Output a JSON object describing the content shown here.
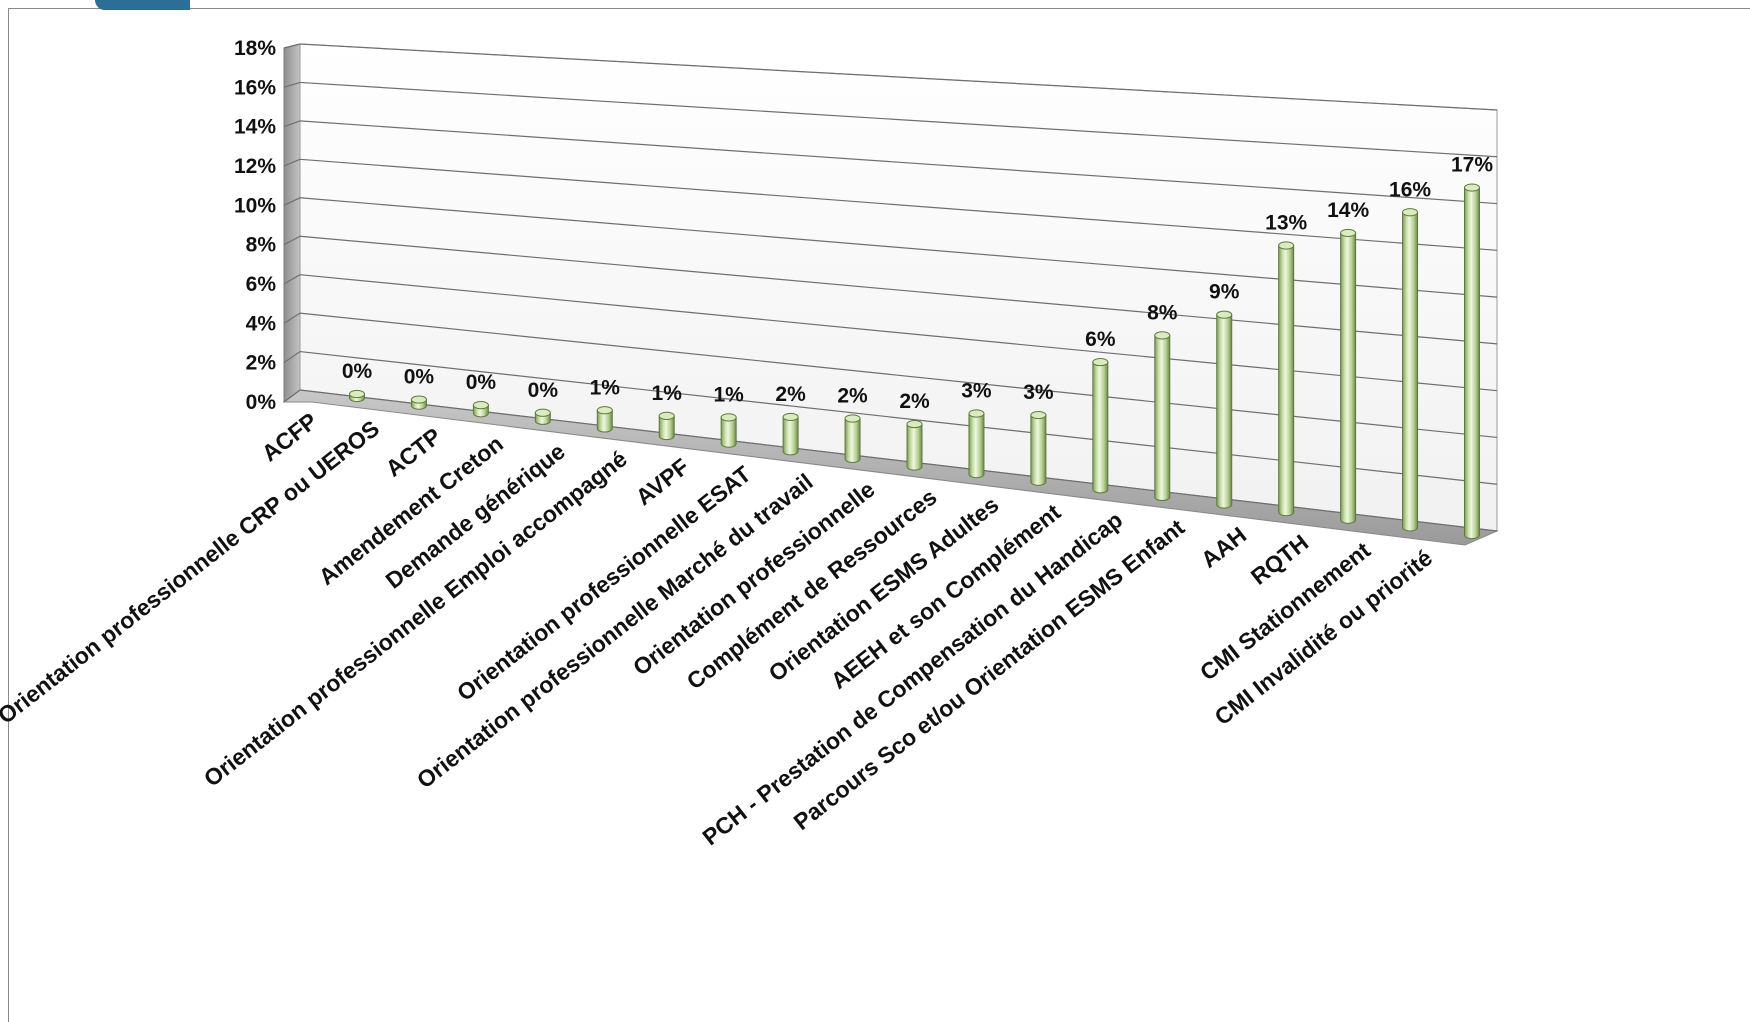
{
  "chart_data": {
    "type": "bar",
    "style": "3d-cylinder",
    "color": "#c9e2a6",
    "categories": [
      "ACFP",
      "Orientation professionnelle CRP ou UEROS",
      "ACTP",
      "Amendement Creton",
      "Demande générique",
      "Orientation professionnelle Emploi accompagné",
      "AVPF",
      "Orientation professionnelle ESAT",
      "Orientation professionnelle Marché du travail",
      "Orientation professionnelle",
      "Complément de Ressources",
      "Orientation ESMS Adultes",
      "AEEH et son Complément",
      "PCH - Prestation de Compensation du Handicap",
      "Parcours Sco et/ou Orientation ESMS Enfant",
      "AAH",
      "RQTH",
      "CMI Stationnement",
      "CMI Invalidité ou priorité"
    ],
    "values": [
      0.1,
      0.3,
      0.4,
      0.4,
      0.9,
      1.0,
      1.3,
      1.7,
      2.0,
      2.1,
      3.0,
      3.3,
      6.3,
      8.0,
      9.4,
      13.2,
      14.2,
      15.6,
      17.2
    ],
    "data_labels": [
      "0%",
      "0%",
      "0%",
      "0%",
      "1%",
      "1%",
      "1%",
      "2%",
      "2%",
      "2%",
      "3%",
      "3%",
      "6%",
      "8%",
      "9%",
      "13%",
      "14%",
      "16%",
      "17%"
    ],
    "y_ticks": [
      "0%",
      "2%",
      "4%",
      "6%",
      "8%",
      "10%",
      "12%",
      "14%",
      "16%",
      "18%"
    ],
    "ylim": [
      0,
      18
    ],
    "grid": true,
    "legend": "none"
  }
}
